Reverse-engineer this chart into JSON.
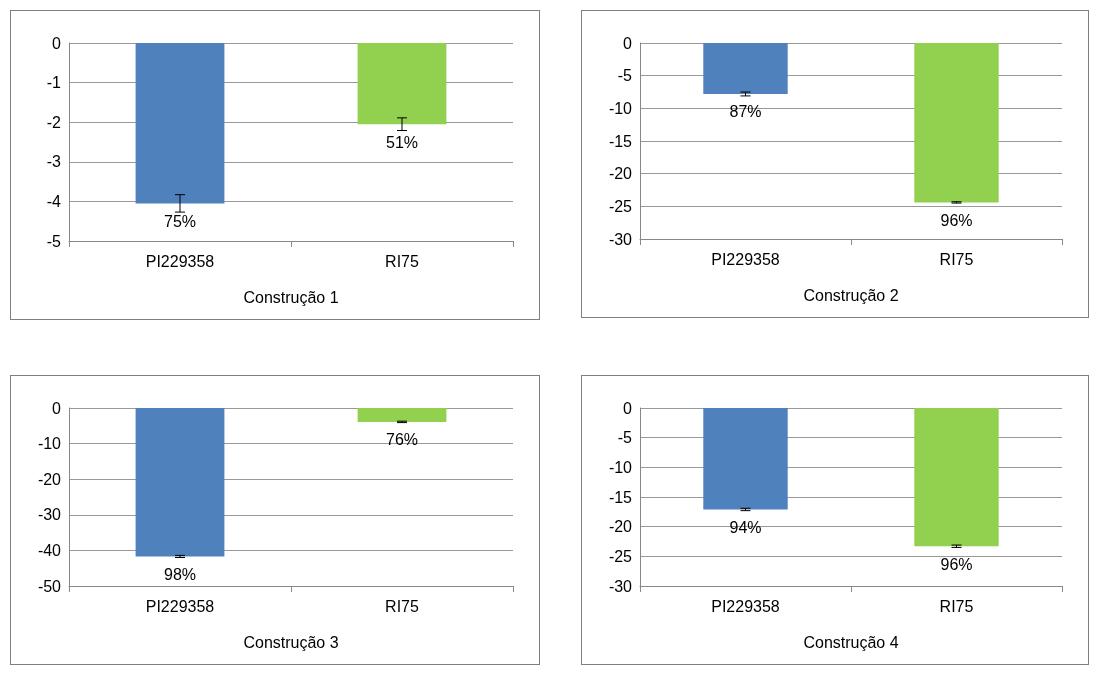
{
  "chart_data": [
    {
      "type": "bar",
      "xlabel": "Construção 1",
      "categories": [
        "PI229358",
        "RI75"
      ],
      "values": [
        -4.05,
        -2.05
      ],
      "colors": [
        "#4f81bd",
        "#92d050"
      ],
      "errors": [
        0.22,
        0.16
      ],
      "annotations": [
        {
          "text": "75%",
          "x": "PI229358",
          "y": -4.05
        },
        {
          "text": "51%",
          "x": "RI75",
          "y": -2.05
        }
      ],
      "ylim": [
        -5,
        0
      ],
      "yticks": [
        0,
        -1,
        -2,
        -3,
        -4,
        -5
      ],
      "grid": "y"
    },
    {
      "type": "bar",
      "xlabel": "Construção 2",
      "categories": [
        "PI229358",
        "RI75"
      ],
      "values": [
        -7.8,
        -24.4
      ],
      "colors": [
        "#4f81bd",
        "#92d050"
      ],
      "errors": [
        0.3,
        0.1
      ],
      "annotations": [
        {
          "text": "87%",
          "x": "PI229358",
          "y": -7.8
        },
        {
          "text": "96%",
          "x": "RI75",
          "y": -24.4
        }
      ],
      "ylim": [
        -30,
        0
      ],
      "yticks": [
        0,
        -5,
        -10,
        -15,
        -20,
        -25,
        -30
      ],
      "grid": "y"
    },
    {
      "type": "bar",
      "xlabel": "Construção 3",
      "categories": [
        "PI229358",
        "RI75"
      ],
      "values": [
        -41.7,
        -3.9
      ],
      "colors": [
        "#4f81bd",
        "#92d050"
      ],
      "errors": [
        0.3,
        0.2
      ],
      "annotations": [
        {
          "text": "98%",
          "x": "PI229358",
          "y": -41.7
        },
        {
          "text": "76%",
          "x": "RI75",
          "y": -3.9
        }
      ],
      "ylim": [
        -50,
        0
      ],
      "yticks": [
        0,
        -10,
        -20,
        -30,
        -40,
        -50
      ],
      "grid": "y"
    },
    {
      "type": "bar",
      "xlabel": "Construção 4",
      "categories": [
        "PI229358",
        "RI75"
      ],
      "values": [
        -17.1,
        -23.3
      ],
      "colors": [
        "#4f81bd",
        "#92d050"
      ],
      "errors": [
        0.2,
        0.2
      ],
      "annotations": [
        {
          "text": "94%",
          "x": "PI229358",
          "y": -17.1
        },
        {
          "text": "96%",
          "x": "RI75",
          "y": -23.3
        }
      ],
      "ylim": [
        -30,
        0
      ],
      "yticks": [
        0,
        -5,
        -10,
        -15,
        -20,
        -25,
        -30
      ],
      "grid": "y"
    }
  ]
}
